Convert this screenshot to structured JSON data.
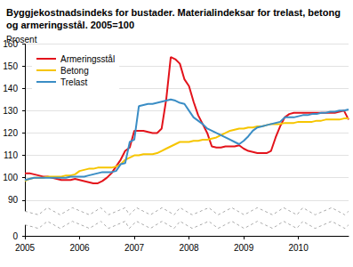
{
  "chart_data": {
    "type": "line",
    "title": "Byggjekostnadsindeks for bustader. Materialindeksar for trelast, betong og armeringsstål. 2005=100",
    "y_label": "Prosent",
    "categories": [
      "2005",
      null,
      null,
      null,
      null,
      null,
      null,
      null,
      null,
      null,
      null,
      null,
      "2006",
      null,
      null,
      null,
      null,
      null,
      null,
      null,
      null,
      null,
      null,
      null,
      "2007",
      null,
      null,
      null,
      null,
      null,
      null,
      null,
      null,
      null,
      null,
      null,
      "2008",
      null,
      null,
      null,
      null,
      null,
      null,
      null,
      null,
      null,
      null,
      null,
      "2009",
      null,
      null,
      null,
      null,
      null,
      null,
      null,
      null,
      null,
      null,
      null,
      "2010",
      null,
      null,
      null,
      null,
      null,
      null,
      null,
      null,
      null,
      null,
      null
    ],
    "series": [
      {
        "name": "Armeringsstål",
        "color": "#e3131b",
        "values": [
          102,
          102,
          101.5,
          101,
          100.5,
          100.5,
          100,
          99.5,
          99,
          99,
          99,
          99.5,
          99,
          98.5,
          98,
          97.5,
          97.5,
          98.5,
          100,
          102,
          105,
          108,
          112,
          113.5,
          121,
          121,
          121,
          120.5,
          120,
          120,
          122,
          135,
          154,
          153,
          151,
          144,
          141,
          134,
          128,
          124,
          120,
          114,
          113.5,
          113.5,
          114,
          114,
          114,
          114.5,
          113,
          112,
          111.5,
          111,
          111,
          111,
          112,
          118,
          123,
          127,
          128.5,
          129,
          129,
          129,
          129,
          129,
          129,
          129,
          129,
          129,
          129,
          129.5,
          130,
          126
        ]
      },
      {
        "name": "Betong",
        "color": "#f6c500",
        "values": [
          98.5,
          99.5,
          100,
          100,
          100,
          100.5,
          100.5,
          100.5,
          100.5,
          101,
          101,
          101.5,
          103,
          103.5,
          104,
          104,
          104.5,
          104.5,
          104.5,
          104.5,
          105,
          106,
          108,
          109,
          110,
          110,
          110.5,
          110.5,
          110.5,
          111,
          112,
          113,
          114,
          115,
          116,
          116,
          116,
          116.5,
          116.5,
          117,
          117,
          117.5,
          118,
          119,
          120,
          121,
          121.5,
          122,
          122,
          122.5,
          122.5,
          123,
          123,
          123.5,
          124,
          124,
          124,
          124.5,
          124.5,
          124.5,
          125,
          125,
          125,
          125,
          125.5,
          125.5,
          126,
          126,
          126,
          126,
          126.5,
          126.5
        ]
      },
      {
        "name": "Trelast",
        "color": "#3a8dc5",
        "values": [
          99,
          99.5,
          100,
          100,
          100,
          100,
          100,
          100,
          100,
          100,
          100.5,
          100.5,
          100.5,
          100.5,
          101,
          101.5,
          102,
          102.5,
          102.5,
          102.5,
          103,
          106,
          106.5,
          116,
          117,
          132,
          132.5,
          133,
          133,
          133.5,
          134,
          134.5,
          135,
          134.5,
          133.5,
          133,
          130,
          127,
          125.5,
          124,
          122,
          121,
          120,
          119,
          118,
          117,
          116,
          115,
          116.5,
          118.5,
          121,
          122.5,
          123,
          123.5,
          124,
          124.5,
          125,
          127,
          127,
          127,
          127.5,
          128,
          128,
          128.5,
          128.5,
          129,
          129,
          129.5,
          129.5,
          130,
          130,
          130.5
        ]
      }
    ],
    "ylim": [
      0,
      160
    ],
    "yticks": [
      0,
      90,
      100,
      110,
      120,
      130,
      140,
      150,
      160
    ],
    "grid": true,
    "legend": "upper left"
  }
}
